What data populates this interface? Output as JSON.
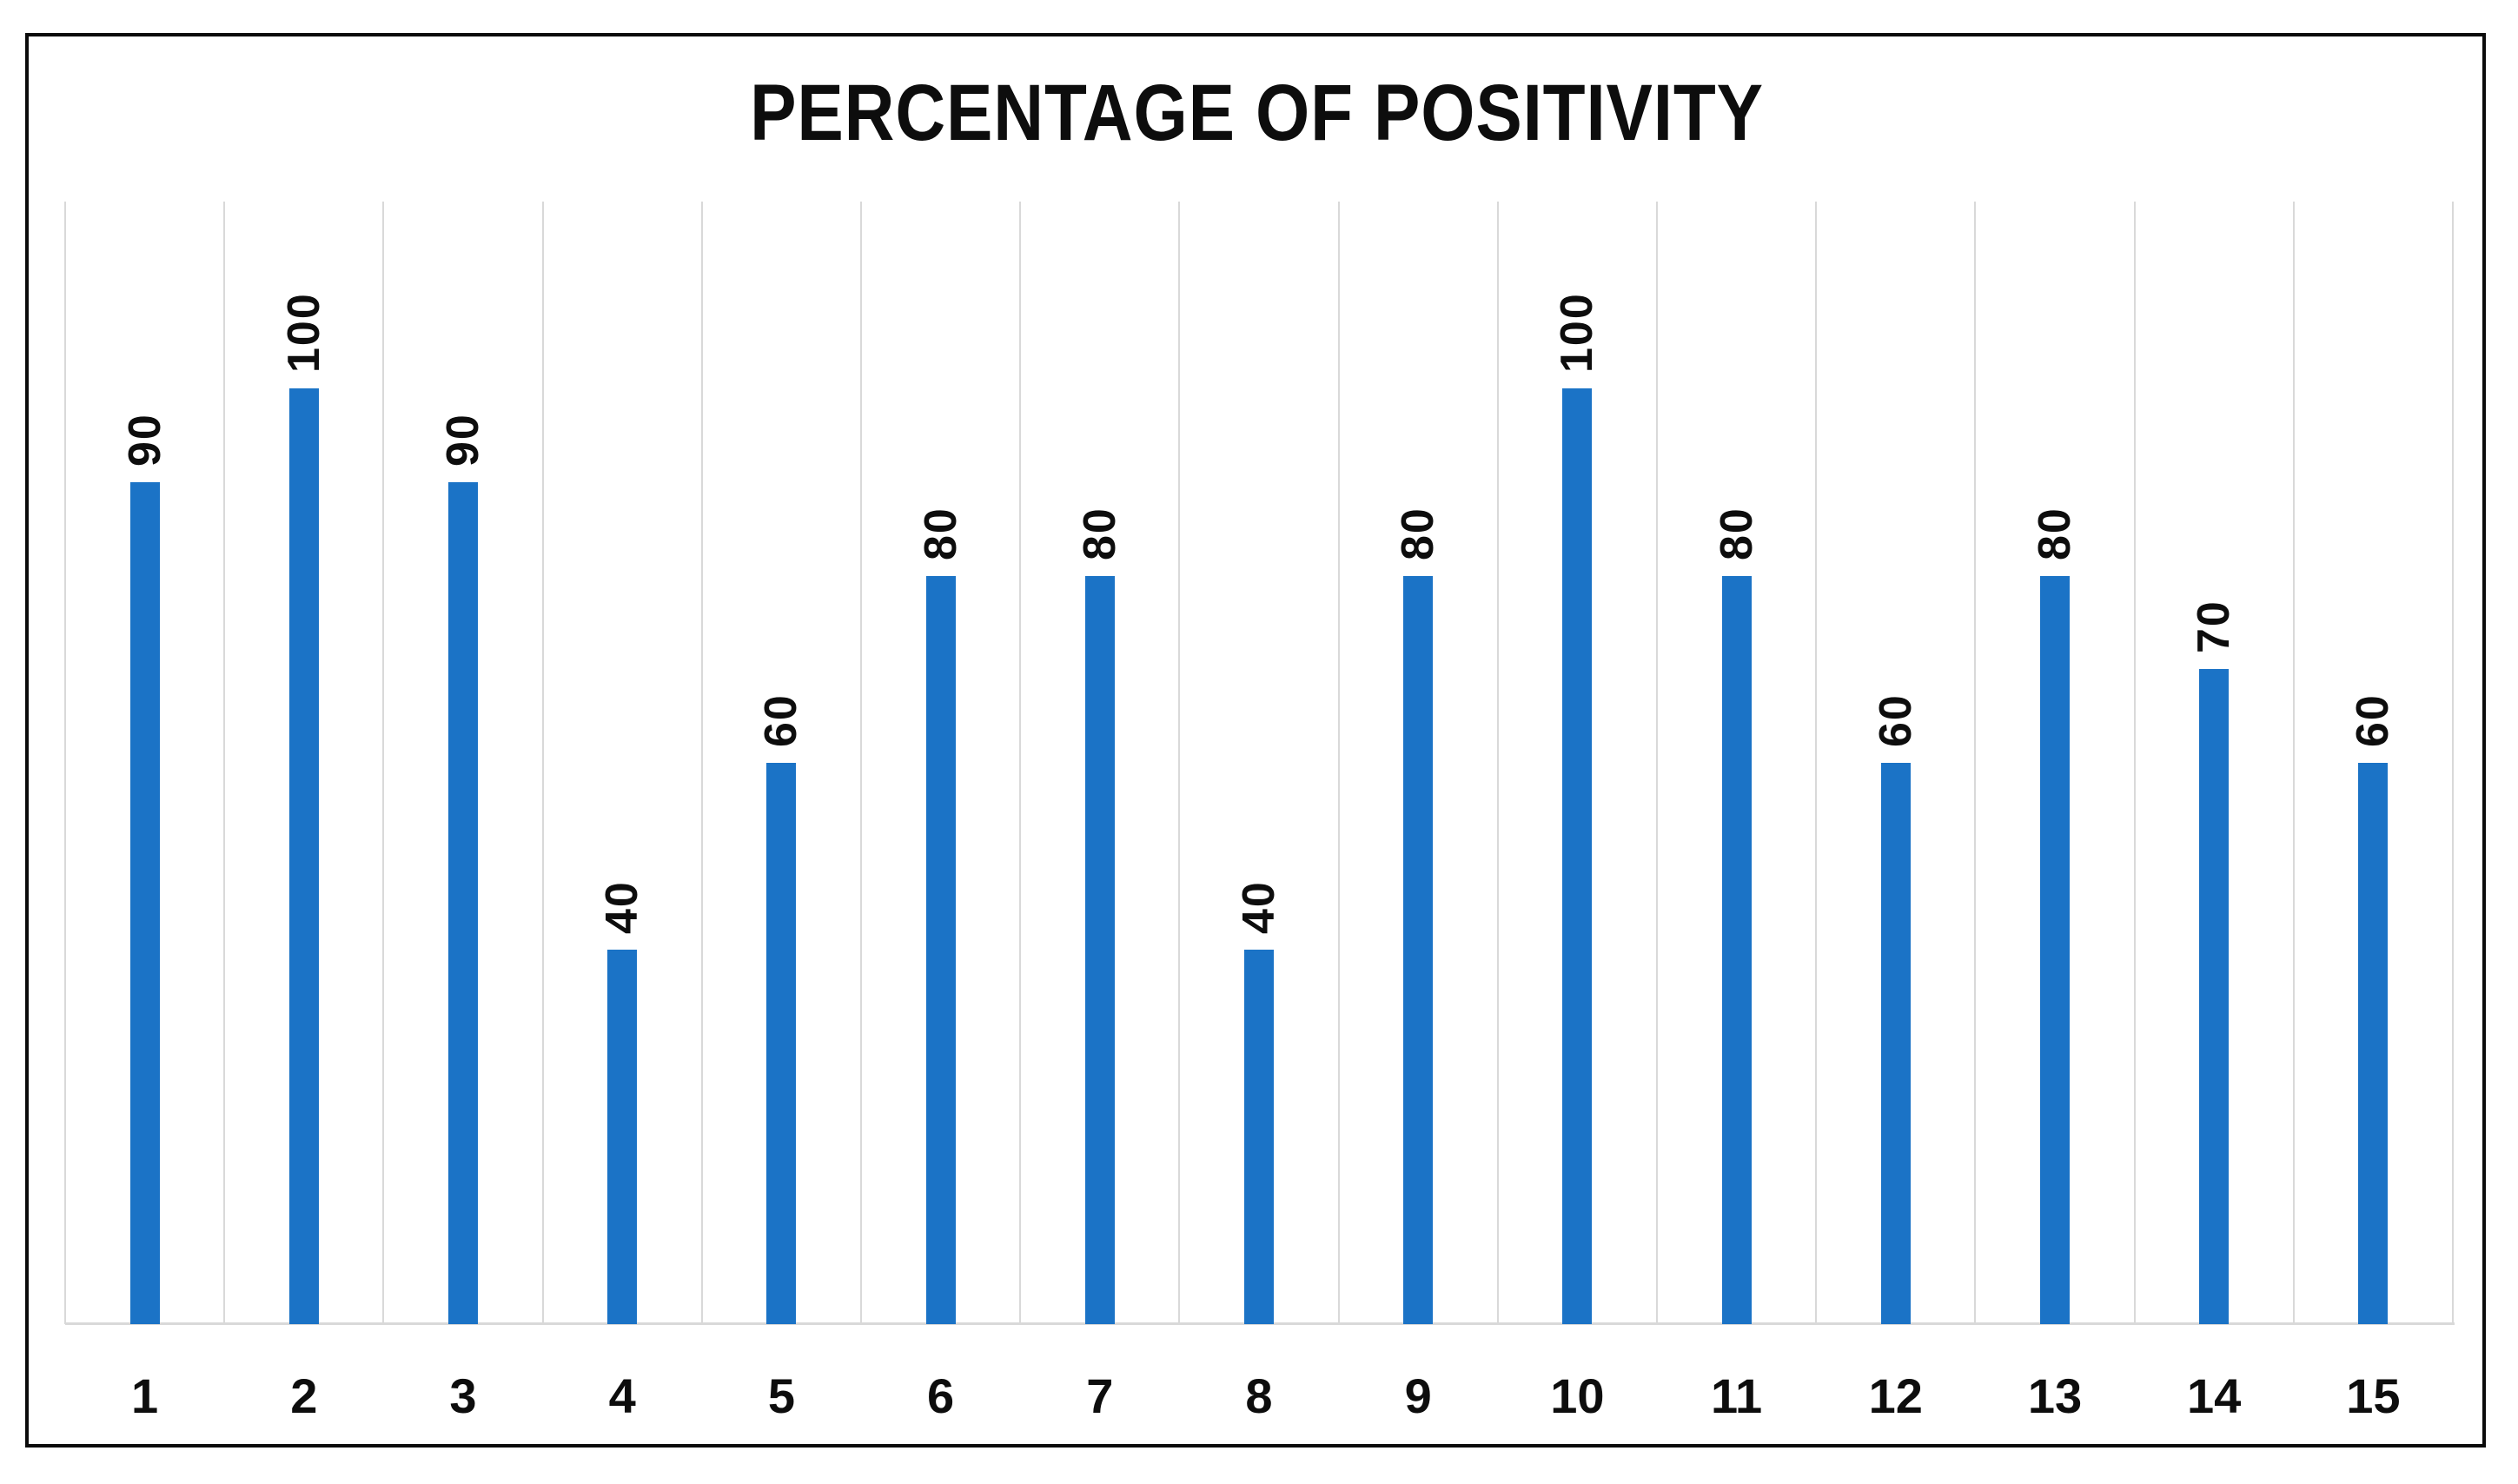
{
  "chart_data": {
    "type": "bar",
    "title": "PERCENTAGE OF POSITIVITY",
    "categories": [
      "1",
      "2",
      "3",
      "4",
      "5",
      "6",
      "7",
      "8",
      "9",
      "10",
      "11",
      "12",
      "13",
      "14",
      "15"
    ],
    "values": [
      90,
      100,
      90,
      40,
      60,
      80,
      80,
      40,
      80,
      100,
      80,
      60,
      80,
      70,
      60
    ],
    "xlabel": "",
    "ylabel": "",
    "ylim": [
      0,
      120
    ],
    "grid": "vertical-category-gridlines",
    "legend_position": "none",
    "data_label_style": "rotated-90-above-bar",
    "colors": {
      "bar": "#1b73c6",
      "gridline": "#d9d9d9",
      "baseline": "#d9d9d9",
      "label_text": "#0d0d0d",
      "title_text": "#0d0d0d",
      "frame_border": "#0b0b0b",
      "background": "#ffffff"
    }
  }
}
